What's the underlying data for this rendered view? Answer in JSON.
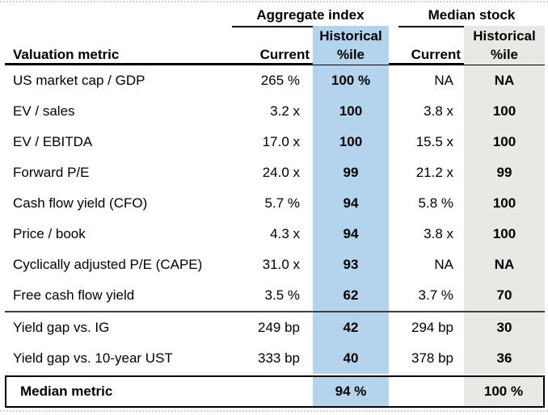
{
  "colors": {
    "aggregate_pctile_bg": "#b3d4ec",
    "median_pctile_bg": "#e8e8e5",
    "rule_color": "#000000"
  },
  "table": {
    "header": {
      "metric_col": "Valuation metric",
      "groups": [
        {
          "label": "Aggregate index"
        },
        {
          "label": "Median stock"
        }
      ],
      "sub": {
        "historical": "Historical",
        "current": "Current",
        "pctile": "%ile"
      }
    },
    "rows": [
      {
        "metric": "US market cap / GDP",
        "agg_current": "265 %",
        "agg_pctile": "100 %",
        "med_current": "NA",
        "med_pctile": "NA"
      },
      {
        "metric": "EV / sales",
        "agg_current": "3.2 x",
        "agg_pctile": "100",
        "med_current": "3.8 x",
        "med_pctile": "100"
      },
      {
        "metric": "EV / EBITDA",
        "agg_current": "17.0 x",
        "agg_pctile": "100",
        "med_current": "15.5 x",
        "med_pctile": "100"
      },
      {
        "metric": "Forward P/E",
        "agg_current": "24.0 x",
        "agg_pctile": "99",
        "med_current": "21.2 x",
        "med_pctile": "99"
      },
      {
        "metric": "Cash flow yield (CFO)",
        "agg_current": "5.7 %",
        "agg_pctile": "94",
        "med_current": "5.8 %",
        "med_pctile": "100"
      },
      {
        "metric": "Price / book",
        "agg_current": "4.3 x",
        "agg_pctile": "94",
        "med_current": "3.8 x",
        "med_pctile": "100"
      },
      {
        "metric": "Cyclically adjusted P/E (CAPE)",
        "agg_current": "31.0 x",
        "agg_pctile": "93",
        "med_current": "NA",
        "med_pctile": "NA"
      },
      {
        "metric": "Free cash flow yield",
        "agg_current": "3.5 %",
        "agg_pctile": "62",
        "med_current": "3.7 %",
        "med_pctile": "70"
      },
      {
        "metric": "Yield gap vs. IG",
        "agg_current": "249 bp",
        "agg_pctile": "42",
        "med_current": "294 bp",
        "med_pctile": "30"
      },
      {
        "metric": "Yield gap vs. 10-year UST",
        "agg_current": "333 bp",
        "agg_pctile": "40",
        "med_current": "378 bp",
        "med_pctile": "36"
      }
    ],
    "summary_row": {
      "metric": "Median metric",
      "agg_pctile": "94 %",
      "med_pctile": "100 %"
    }
  }
}
